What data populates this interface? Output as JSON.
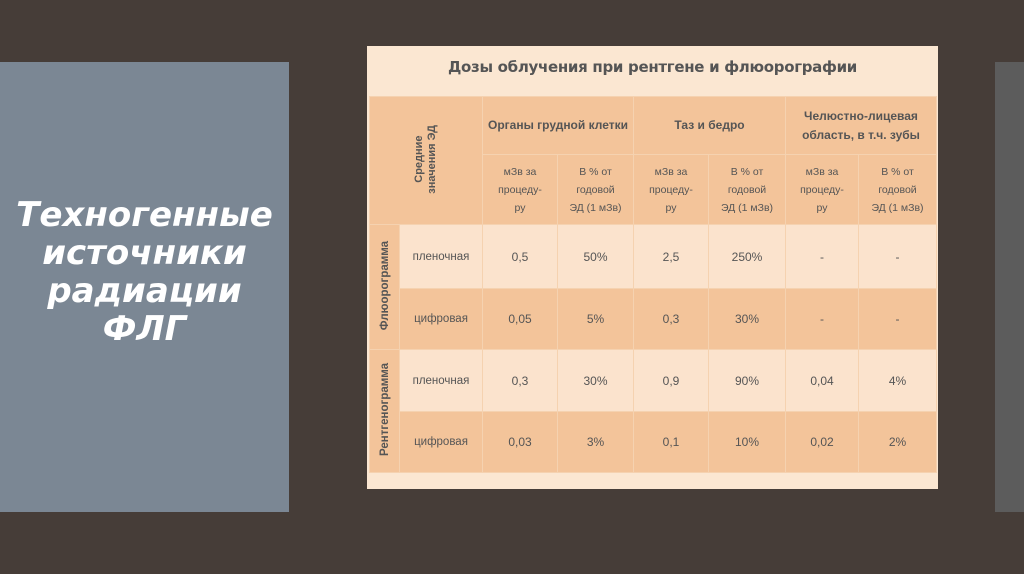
{
  "slide": {
    "title_lines": [
      "Техногенные",
      "источники",
      "радиации",
      "ФЛГ"
    ]
  },
  "document": {
    "title": "Дозы облучения при  рентгене и флюорографии",
    "corner_label_lines": [
      "Средние",
      "значения ЭД"
    ],
    "column_groups": [
      {
        "label": "Органы грудной клетки"
      },
      {
        "label": "Таз и бедро"
      },
      {
        "label": "Челюстно-лицевая область, в т.ч. зубы"
      }
    ],
    "subheaders": {
      "dose_lines": [
        "мЗв за",
        "процеду-",
        "ру"
      ],
      "percent_lines": [
        "В % от",
        "годовой",
        "ЭД (1 мЗв)"
      ]
    },
    "groups": [
      {
        "label": "Флюорограмма",
        "rows": [
          {
            "type": "пленочная",
            "values": [
              "0,5",
              "50%",
              "2,5",
              "250%",
              "-",
              "-"
            ]
          },
          {
            "type": "цифровая",
            "values": [
              "0,05",
              "5%",
              "0,3",
              "30%",
              "-",
              "-"
            ]
          }
        ]
      },
      {
        "label": "Рентгенограмма",
        "rows": [
          {
            "type": "пленочная",
            "values": [
              "0,3",
              "30%",
              "0,9",
              "90%",
              "0,04",
              "4%"
            ]
          },
          {
            "type": "цифровая",
            "values": [
              "0,03",
              "3%",
              "0,1",
              "10%",
              "0,02",
              "2%"
            ]
          }
        ]
      }
    ]
  },
  "colors": {
    "background": "#463d38",
    "left_panel": "#7b8794",
    "table_header": "#f3c49a",
    "table_light_row": "#fbe3cd"
  }
}
